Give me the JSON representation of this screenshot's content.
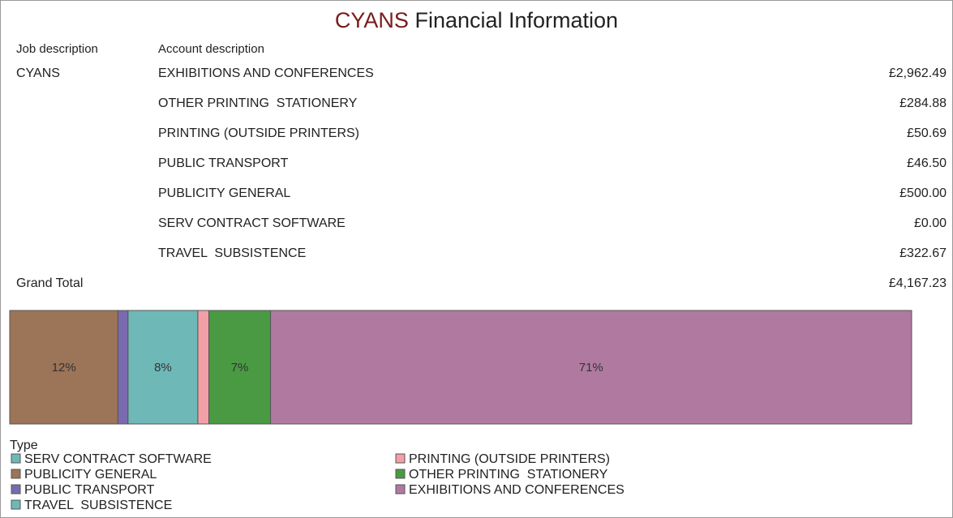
{
  "title": {
    "highlight": "CYANS",
    "rest": "Financial Information"
  },
  "table": {
    "headers": [
      "Job description",
      "Account description"
    ],
    "job": "CYANS",
    "rows": [
      [
        "EXHIBITIONS AND CONFERENCES",
        "£2,962.49"
      ],
      [
        "OTHER PRINTING  STATIONERY",
        "£284.88"
      ],
      [
        "PRINTING (OUTSIDE PRINTERS)",
        "£50.69"
      ],
      [
        "PUBLIC TRANSPORT",
        "£46.50"
      ],
      [
        "PUBLICITY GENERAL",
        "£500.00"
      ],
      [
        "SERV CONTRACT SOFTWARE",
        "£0.00"
      ],
      [
        "TRAVEL  SUBSISTENCE",
        "£322.67"
      ]
    ],
    "total_label": "Grand Total",
    "total": "£4,167.23"
  },
  "chart": {
    "type": "stacked-bar-100",
    "legend_title": "Type",
    "series": [
      {
        "name": "SERV CONTRACT SOFTWARE",
        "color": "#6fb8b8",
        "value": 0,
        "value_label": null
      },
      {
        "name": "PUBLICITY GENERAL",
        "color": "#9c7458",
        "value": 12.0,
        "value_label": "12%"
      },
      {
        "name": "PUBLIC TRANSPORT",
        "color": "#7a6aae",
        "value": 1.12,
        "value_label": null
      },
      {
        "name": "TRAVEL  SUBSISTENCE",
        "color": "#6fb8b8",
        "value": 7.74,
        "value_label": "8%"
      },
      {
        "name": "PRINTING (OUTSIDE PRINTERS)",
        "color": "#f2a0a6",
        "value": 1.22,
        "value_label": null
      },
      {
        "name": "OTHER PRINTING  STATIONERY",
        "color": "#4a9a44",
        "value": 6.84,
        "value_label": "7%"
      },
      {
        "name": "EXHIBITIONS AND CONFERENCES",
        "color": "#b07aa0",
        "value": 71.09,
        "value_label": "71%"
      }
    ]
  }
}
